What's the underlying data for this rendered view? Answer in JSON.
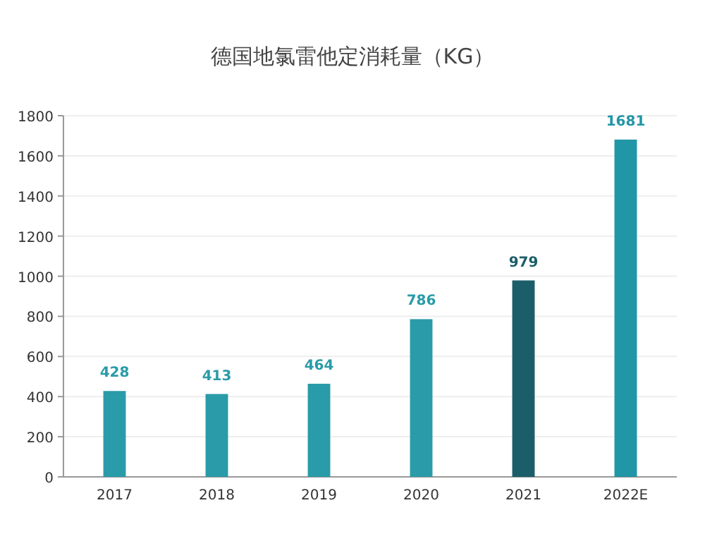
{
  "chart_data": {
    "type": "bar",
    "title": "德国地氯雷他定消耗量（KG）",
    "categories": [
      "2017",
      "2018",
      "2019",
      "2020",
      "2021",
      "2022E"
    ],
    "values": [
      428,
      413,
      464,
      786,
      979,
      1681
    ],
    "colors": [
      "#2a9ba8",
      "#2a9ba8",
      "#2a9ba8",
      "#2a9ba8",
      "#1b5e69",
      "#2196a6"
    ],
    "ylim": [
      0,
      1800
    ],
    "yticks": [
      0,
      200,
      400,
      600,
      800,
      1000,
      1200,
      1400,
      1600,
      1800
    ],
    "grid": "y",
    "data_labels": true
  }
}
